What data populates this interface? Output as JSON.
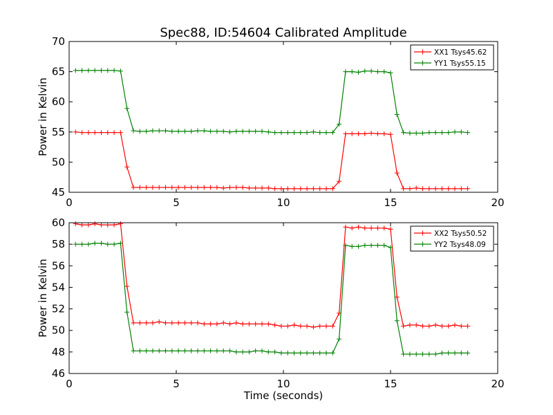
{
  "title": "Spec88, ID:54604 Calibrated Amplitude",
  "colors": {
    "xx": "#ff0000",
    "yy": "#008000",
    "axis": "#000000",
    "background": "#ffffff"
  },
  "chart_data": [
    {
      "type": "line",
      "title": "Spec88, ID:54604 Calibrated Amplitude",
      "xlabel": "",
      "ylabel": "Power in Kelvin",
      "xlim": [
        0,
        20
      ],
      "ylim": [
        45,
        70
      ],
      "xticks": [
        "0",
        "5",
        "10",
        "15",
        "20"
      ],
      "yticks": [
        "45",
        "50",
        "55",
        "60",
        "65",
        "70"
      ],
      "grid": false,
      "legend_position": "top-right",
      "x": [
        0.3,
        0.6,
        0.9,
        1.2,
        1.5,
        1.8,
        2.1,
        2.4,
        2.7,
        3.0,
        3.3,
        3.6,
        3.9,
        4.2,
        4.5,
        4.8,
        5.1,
        5.4,
        5.7,
        6.0,
        6.3,
        6.6,
        6.9,
        7.2,
        7.5,
        7.8,
        8.1,
        8.4,
        8.7,
        9.0,
        9.3,
        9.6,
        9.9,
        10.2,
        10.5,
        10.8,
        11.1,
        11.4,
        11.7,
        12.0,
        12.3,
        12.6,
        12.9,
        13.2,
        13.5,
        13.8,
        14.1,
        14.4,
        14.7,
        15.0,
        15.3,
        15.6,
        15.9,
        16.2,
        16.5,
        16.8,
        17.1,
        17.4,
        17.7,
        18.0,
        18.3,
        18.6
      ],
      "series": [
        {
          "name": "XX1 Tsys45.62",
          "color": "#ff0000",
          "values": [
            55.0,
            54.9,
            54.9,
            54.9,
            54.9,
            54.9,
            54.9,
            54.9,
            49.2,
            45.8,
            45.8,
            45.8,
            45.8,
            45.8,
            45.8,
            45.8,
            45.8,
            45.8,
            45.8,
            45.8,
            45.8,
            45.8,
            45.8,
            45.7,
            45.8,
            45.8,
            45.8,
            45.7,
            45.7,
            45.7,
            45.7,
            45.6,
            45.6,
            45.6,
            45.6,
            45.6,
            45.6,
            45.6,
            45.6,
            45.6,
            45.6,
            46.8,
            54.7,
            54.7,
            54.7,
            54.7,
            54.8,
            54.7,
            54.7,
            54.6,
            48.2,
            45.6,
            45.6,
            45.7,
            45.6,
            45.6,
            45.6,
            45.6,
            45.6,
            45.6,
            45.6,
            45.6
          ]
        },
        {
          "name": "YY1 Tsys55.15",
          "color": "#008000",
          "values": [
            65.2,
            65.2,
            65.2,
            65.2,
            65.2,
            65.2,
            65.2,
            65.1,
            58.9,
            55.2,
            55.1,
            55.1,
            55.2,
            55.2,
            55.2,
            55.1,
            55.1,
            55.1,
            55.1,
            55.2,
            55.2,
            55.1,
            55.1,
            55.1,
            55.0,
            55.1,
            55.1,
            55.1,
            55.1,
            55.1,
            55.0,
            54.9,
            54.9,
            54.9,
            54.9,
            54.9,
            54.9,
            55.0,
            54.9,
            54.9,
            54.9,
            56.3,
            65.0,
            65.0,
            64.9,
            65.1,
            65.1,
            65.0,
            65.0,
            64.8,
            57.9,
            54.9,
            54.8,
            54.8,
            54.8,
            54.9,
            54.9,
            54.9,
            54.9,
            55.0,
            55.0,
            54.9
          ]
        }
      ]
    },
    {
      "type": "line",
      "title": "",
      "xlabel": "Time (seconds)",
      "ylabel": "Power in Kelvin",
      "xlim": [
        0,
        20
      ],
      "ylim": [
        46,
        60
      ],
      "xticks": [
        "0",
        "5",
        "10",
        "15",
        "20"
      ],
      "yticks": [
        "46",
        "48",
        "50",
        "52",
        "54",
        "56",
        "58",
        "60"
      ],
      "grid": false,
      "legend_position": "top-right",
      "x": [
        0.3,
        0.6,
        0.9,
        1.2,
        1.5,
        1.8,
        2.1,
        2.4,
        2.7,
        3.0,
        3.3,
        3.6,
        3.9,
        4.2,
        4.5,
        4.8,
        5.1,
        5.4,
        5.7,
        6.0,
        6.3,
        6.6,
        6.9,
        7.2,
        7.5,
        7.8,
        8.1,
        8.4,
        8.7,
        9.0,
        9.3,
        9.6,
        9.9,
        10.2,
        10.5,
        10.8,
        11.1,
        11.4,
        11.7,
        12.0,
        12.3,
        12.6,
        12.9,
        13.2,
        13.5,
        13.8,
        14.1,
        14.4,
        14.7,
        15.0,
        15.3,
        15.6,
        15.9,
        16.2,
        16.5,
        16.8,
        17.1,
        17.4,
        17.7,
        18.0,
        18.3,
        18.6
      ],
      "series": [
        {
          "name": "XX2 Tsys50.52",
          "color": "#ff0000",
          "values": [
            59.9,
            59.8,
            59.8,
            59.9,
            59.8,
            59.8,
            59.8,
            59.9,
            54.1,
            50.7,
            50.7,
            50.7,
            50.7,
            50.8,
            50.7,
            50.7,
            50.7,
            50.7,
            50.7,
            50.7,
            50.6,
            50.6,
            50.6,
            50.7,
            50.6,
            50.7,
            50.6,
            50.6,
            50.6,
            50.6,
            50.6,
            50.5,
            50.4,
            50.4,
            50.5,
            50.4,
            50.4,
            50.3,
            50.4,
            50.4,
            50.4,
            51.6,
            59.6,
            59.5,
            59.6,
            59.5,
            59.5,
            59.5,
            59.5,
            59.4,
            53.1,
            50.4,
            50.5,
            50.5,
            50.4,
            50.4,
            50.5,
            50.4,
            50.4,
            50.5,
            50.4,
            50.4
          ]
        },
        {
          "name": "YY2 Tsys48.09",
          "color": "#008000",
          "values": [
            58.0,
            58.0,
            58.0,
            58.1,
            58.1,
            58.0,
            58.0,
            58.1,
            51.7,
            48.1,
            48.1,
            48.1,
            48.1,
            48.1,
            48.1,
            48.1,
            48.1,
            48.1,
            48.1,
            48.1,
            48.1,
            48.1,
            48.1,
            48.1,
            48.1,
            48.0,
            48.0,
            48.0,
            48.1,
            48.1,
            48.0,
            48.0,
            47.9,
            47.9,
            47.9,
            47.9,
            47.9,
            47.9,
            47.9,
            47.9,
            47.9,
            49.2,
            57.9,
            57.8,
            57.8,
            57.9,
            57.9,
            57.9,
            57.9,
            57.7,
            50.9,
            47.8,
            47.8,
            47.8,
            47.8,
            47.8,
            47.8,
            47.9,
            47.9,
            47.9,
            47.9,
            47.9
          ]
        }
      ]
    }
  ]
}
